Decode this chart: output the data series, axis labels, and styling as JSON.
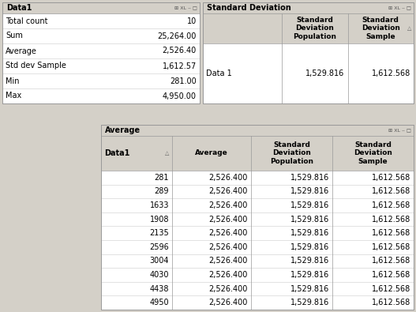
{
  "bg_color": "#d4d0c8",
  "panel_bg": "#ffffff",
  "panel_header_bg": "#d4d0c8",
  "border_color": "#999999",
  "grid_color": "#cccccc",
  "text_color": "#000000",
  "stats_title": "Data1",
  "stats_rows": [
    [
      "Total count",
      "10"
    ],
    [
      "Sum",
      "25,264.00"
    ],
    [
      "Average",
      "2,526.40"
    ],
    [
      "Std dev Sample",
      "1,612.57"
    ],
    [
      "Min",
      "281.00"
    ],
    [
      "Max",
      "4,950.00"
    ]
  ],
  "stddev_title": "Standard Deviation",
  "stddev_col_headers": [
    "",
    "Standard\nDeviation\nPopulation",
    "Standard\nDeviation\nSample"
  ],
  "stddev_rows": [
    [
      "Data 1",
      "1,529.816",
      "1,612.568"
    ]
  ],
  "avg_title": "Average",
  "avg_col_headers": [
    "Data1",
    "Average",
    "Standard\nDeviation\nPopulation",
    "Standard\nDeviation\nSample"
  ],
  "avg_rows": [
    [
      "281",
      "2,526.400",
      "1,529.816",
      "1,612.568"
    ],
    [
      "289",
      "2,526.400",
      "1,529.816",
      "1,612.568"
    ],
    [
      "1633",
      "2,526.400",
      "1,529.816",
      "1,612.568"
    ],
    [
      "1908",
      "2,526.400",
      "1,529.816",
      "1,612.568"
    ],
    [
      "2135",
      "2,526.400",
      "1,529.816",
      "1,612.568"
    ],
    [
      "2596",
      "2,526.400",
      "1,529.816",
      "1,612.568"
    ],
    [
      "3004",
      "2,526.400",
      "1,529.816",
      "1,612.568"
    ],
    [
      "4030",
      "2,526.400",
      "1,529.816",
      "1,612.568"
    ],
    [
      "4438",
      "2,526.400",
      "1,529.816",
      "1,612.568"
    ],
    [
      "4950",
      "2,526.400",
      "1,529.816",
      "1,612.568"
    ]
  ],
  "fig_w": 5.27,
  "fig_h": 3.95,
  "dpi": 100
}
